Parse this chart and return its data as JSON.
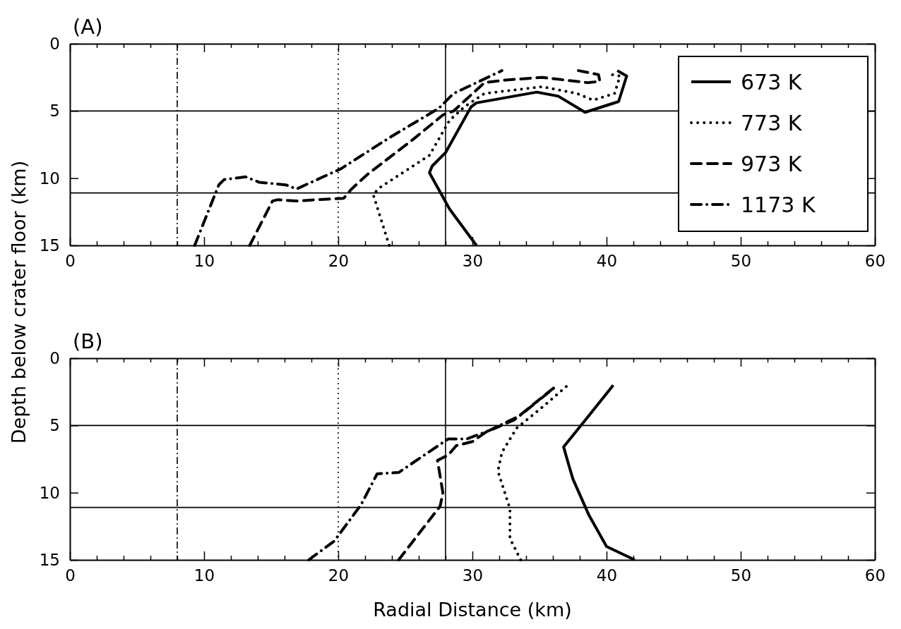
{
  "chart_data": [
    {
      "type": "line",
      "title": "(A)",
      "ylabel": "Depth below crater floor (km)",
      "xlim": [
        0,
        60
      ],
      "ylim": [
        15,
        0
      ],
      "xticks": [
        0,
        {
          "value": 2,
          "label": null
        },
        {
          "value": 4,
          "label": null
        },
        {
          "value": 6,
          "label": null
        },
        {
          "value": 8,
          "label": null
        },
        10,
        {
          "value": 12,
          "label": null
        },
        {
          "value": 14,
          "label": null
        },
        {
          "value": 16,
          "label": null
        },
        {
          "value": 18,
          "label": null
        },
        20,
        {
          "value": 22,
          "label": null
        },
        {
          "value": 24,
          "label": null
        },
        {
          "value": 26,
          "label": null
        },
        {
          "value": 28,
          "label": null
        },
        30,
        {
          "value": 32,
          "label": null
        },
        {
          "value": 34,
          "label": null
        },
        {
          "value": 36,
          "label": null
        },
        {
          "value": 38,
          "label": null
        },
        40,
        {
          "value": 42,
          "label": null
        },
        {
          "value": 44,
          "label": null
        },
        {
          "value": 46,
          "label": null
        },
        {
          "value": 48,
          "label": null
        },
        50,
        {
          "value": 52,
          "label": null
        },
        {
          "value": 54,
          "label": null
        },
        {
          "value": 56,
          "label": null
        },
        {
          "value": 58,
          "label": null
        },
        60
      ],
      "yticks": [
        0,
        5,
        10,
        15
      ],
      "grid": false,
      "legend": "top right",
      "ref_lines": [
        {
          "axis": "y",
          "value": 5,
          "line_style": "solid"
        },
        {
          "axis": "y",
          "value": 11.1,
          "line_style": "solid"
        },
        {
          "axis": "x",
          "value": 8,
          "line_style": "dashdot"
        },
        {
          "axis": "x",
          "value": 20,
          "line_style": "dotted"
        },
        {
          "axis": "x",
          "value": 28,
          "line_style": "solid"
        }
      ],
      "series": [
        {
          "name": "673 K",
          "color": "#000000",
          "line_style": "solid",
          "x": [
            30.3,
            28.3,
            26.8,
            27.0,
            28.0,
            29.9,
            30.3,
            34.8,
            36.4,
            38.4,
            40.9,
            41.5,
            40.8
          ],
          "values": [
            15,
            12.3,
            9.6,
            9.1,
            8.1,
            4.7,
            4.4,
            3.6,
            3.9,
            5.1,
            4.3,
            2.4,
            2.0
          ]
        },
        {
          "name": "773 K",
          "color": "#000000",
          "line_style": "dotted",
          "x": [
            23.8,
            22.6,
            23.1,
            26.8,
            28.3,
            29.4,
            30.9,
            35.2,
            37.8,
            39.0,
            40.6,
            41.0,
            40.4
          ],
          "values": [
            15,
            11.2,
            10.7,
            8.3,
            5.7,
            4.7,
            3.7,
            3.2,
            3.7,
            4.2,
            3.7,
            2.4,
            2.3
          ]
        },
        {
          "name": "973 K",
          "color": "#000000",
          "line_style": "dashed",
          "x": [
            13.4,
            15.1,
            15.5,
            16.9,
            18.4,
            20.4,
            21.0,
            22.2,
            25.6,
            27.8,
            28.6,
            30.9,
            32.5,
            35.2,
            38.6,
            39.5,
            39.4,
            37.9
          ],
          "values": [
            15,
            11.7,
            11.6,
            11.7,
            11.6,
            11.5,
            10.8,
            9.7,
            7.1,
            5.3,
            5.0,
            2.9,
            2.7,
            2.5,
            2.9,
            2.8,
            2.3,
            2.0
          ]
        },
        {
          "name": "1173 K",
          "color": "#000000",
          "line_style": "dashdot",
          "x": [
            9.3,
            11.1,
            11.5,
            13.1,
            14.1,
            16.1,
            16.9,
            20.2,
            23.8,
            27.5,
            28.6,
            32.2
          ],
          "values": [
            15,
            10.5,
            10.1,
            9.9,
            10.3,
            10.5,
            10.8,
            9.3,
            7.0,
            4.8,
            3.7,
            2.0
          ]
        }
      ]
    },
    {
      "type": "line",
      "title": "(B)",
      "xlabel": "Radial Distance (km)",
      "xlim": [
        0,
        60
      ],
      "ylim": [
        15,
        0
      ],
      "xticks": [
        0,
        {
          "value": 2,
          "label": null
        },
        {
          "value": 4,
          "label": null
        },
        {
          "value": 6,
          "label": null
        },
        {
          "value": 8,
          "label": null
        },
        10,
        {
          "value": 12,
          "label": null
        },
        {
          "value": 14,
          "label": null
        },
        {
          "value": 16,
          "label": null
        },
        {
          "value": 18,
          "label": null
        },
        20,
        {
          "value": 22,
          "label": null
        },
        {
          "value": 24,
          "label": null
        },
        {
          "value": 26,
          "label": null
        },
        {
          "value": 28,
          "label": null
        },
        30,
        {
          "value": 32,
          "label": null
        },
        {
          "value": 34,
          "label": null
        },
        {
          "value": 36,
          "label": null
        },
        {
          "value": 38,
          "label": null
        },
        40,
        {
          "value": 42,
          "label": null
        },
        {
          "value": 44,
          "label": null
        },
        {
          "value": 46,
          "label": null
        },
        {
          "value": 48,
          "label": null
        },
        50,
        {
          "value": 52,
          "label": null
        },
        {
          "value": 54,
          "label": null
        },
        {
          "value": 56,
          "label": null
        },
        {
          "value": 58,
          "label": null
        },
        60
      ],
      "yticks": [
        0,
        5,
        10,
        15
      ],
      "grid": false,
      "legend": false,
      "ref_lines": [
        {
          "axis": "y",
          "value": 5,
          "line_style": "solid"
        },
        {
          "axis": "y",
          "value": 11.1,
          "line_style": "solid"
        },
        {
          "axis": "x",
          "value": 8,
          "line_style": "dashdot"
        },
        {
          "axis": "x",
          "value": 20,
          "line_style": "dotted"
        },
        {
          "axis": "x",
          "value": 28,
          "line_style": "solid"
        }
      ],
      "series": [
        {
          "color": "#000000",
          "line_style": "solid",
          "x": [
            42.1,
            40.0,
            38.7,
            37.5,
            37.2,
            36.8,
            38.5,
            40.5
          ],
          "values": [
            15,
            14,
            11.7,
            9.0,
            8.0,
            6.6,
            4.5,
            2.0
          ]
        },
        {
          "color": "#000000",
          "line_style": "dotted",
          "x": [
            33.6,
            32.8,
            32.8,
            31.9,
            32.2,
            33.3,
            35.5,
            37.0
          ],
          "values": [
            15,
            13.4,
            11.2,
            8.4,
            7.0,
            5.2,
            3.4,
            2.1
          ]
        },
        {
          "color": "#000000",
          "line_style": "dashed",
          "x": [
            24.5,
            27.6,
            27.8,
            27.4,
            28.2,
            28.8,
            30.0,
            31.0,
            33.1,
            35.7,
            36.2
          ],
          "values": [
            15,
            11.0,
            10.0,
            7.6,
            7.2,
            6.5,
            6.2,
            5.5,
            4.6,
            2.5,
            2.1
          ]
        },
        {
          "color": "#000000",
          "line_style": "dashdot",
          "x": [
            17.8,
            19.7,
            21.7,
            22.9,
            24.5,
            28.2,
            29.6,
            31.2,
            33.5,
            36.1
          ],
          "values": [
            15,
            13.6,
            10.9,
            8.6,
            8.5,
            6.0,
            6.0,
            5.4,
            4.3,
            2.2
          ]
        }
      ]
    }
  ]
}
